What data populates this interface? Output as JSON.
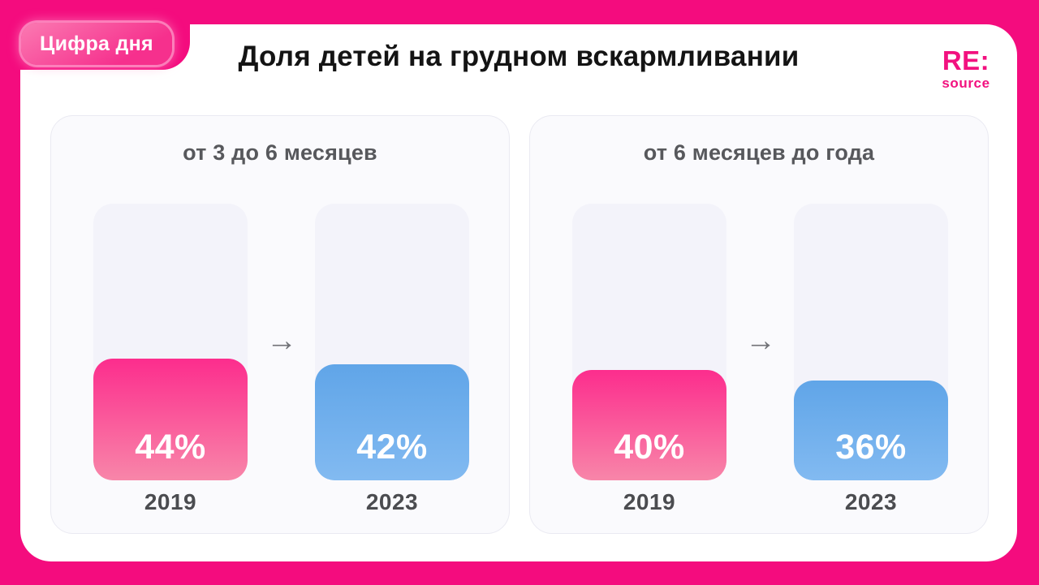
{
  "page": {
    "background_color": "#F40C7E",
    "card_color": "#FFFFFF",
    "panel_color": "#FAFAFD",
    "track_color": "#F3F3FA",
    "bar_pink_top": "#FC2D8D",
    "bar_pink_bottom": "#F886A9",
    "bar_blue_top": "#60A5E8",
    "bar_blue_bottom": "#82BAF1"
  },
  "badge": {
    "label": "Цифра дня"
  },
  "header": {
    "title": "Доля детей на грудном вскармливании"
  },
  "logo": {
    "line1": "RE:",
    "line2": "source",
    "color": "#F2117F"
  },
  "icons": {
    "arrow_right": "→"
  },
  "chart_data": [
    {
      "type": "bar",
      "title": "от 3 до 6 месяцев",
      "categories": [
        "2019",
        "2023"
      ],
      "values": [
        44,
        42
      ],
      "value_labels": [
        "44%",
        "42%"
      ],
      "unit": "%",
      "ylim": [
        0,
        100
      ],
      "series_colors": [
        "pink",
        "blue"
      ],
      "annotation": "arrow from 2019 to 2023"
    },
    {
      "type": "bar",
      "title": "от 6 месяцев до года",
      "categories": [
        "2019",
        "2023"
      ],
      "values": [
        40,
        36
      ],
      "value_labels": [
        "40%",
        "36%"
      ],
      "unit": "%",
      "ylim": [
        0,
        100
      ],
      "series_colors": [
        "pink",
        "blue"
      ],
      "annotation": "arrow from 2019 to 2023"
    }
  ]
}
